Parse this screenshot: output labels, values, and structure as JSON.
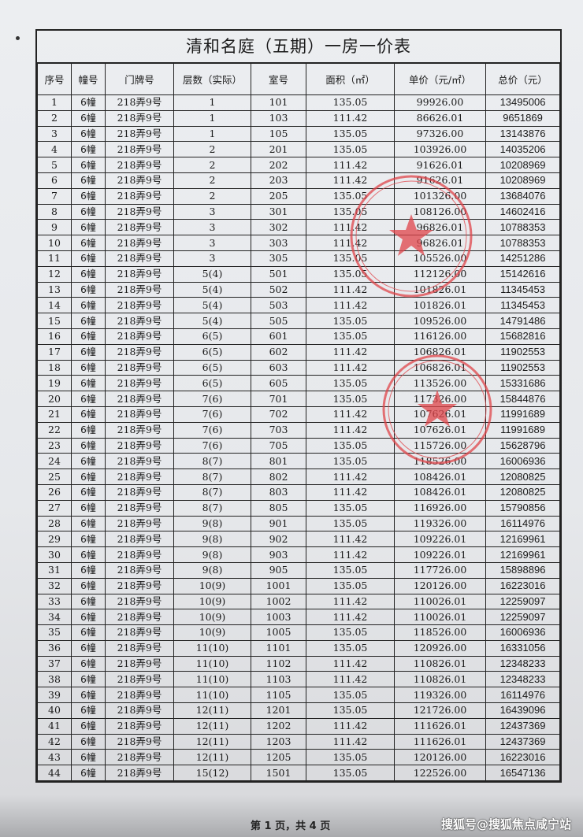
{
  "title": "清和名庭（五期）一房一价表",
  "columns": [
    "序号",
    "幢号",
    "门牌号",
    "层数（实际）",
    "室号",
    "面积（㎡）",
    "单价（元/㎡）",
    "总价（元）"
  ],
  "rows": [
    [
      "1",
      "6幢",
      "218弄9号",
      "1",
      "101",
      "135.05",
      "99926.00",
      "13495006"
    ],
    [
      "2",
      "6幢",
      "218弄9号",
      "1",
      "103",
      "111.42",
      "86626.01",
      "9651869"
    ],
    [
      "3",
      "6幢",
      "218弄9号",
      "1",
      "105",
      "135.05",
      "97326.00",
      "13143876"
    ],
    [
      "4",
      "6幢",
      "218弄9号",
      "2",
      "201",
      "135.05",
      "103926.00",
      "14035206"
    ],
    [
      "5",
      "6幢",
      "218弄9号",
      "2",
      "202",
      "111.42",
      "91626.01",
      "10208969"
    ],
    [
      "6",
      "6幢",
      "218弄9号",
      "2",
      "203",
      "111.42",
      "91626.01",
      "10208969"
    ],
    [
      "7",
      "6幢",
      "218弄9号",
      "2",
      "205",
      "135.05",
      "101326.00",
      "13684076"
    ],
    [
      "8",
      "6幢",
      "218弄9号",
      "3",
      "301",
      "135.05",
      "108126.00",
      "14602416"
    ],
    [
      "9",
      "6幢",
      "218弄9号",
      "3",
      "302",
      "111.42",
      "96826.01",
      "10788353"
    ],
    [
      "10",
      "6幢",
      "218弄9号",
      "3",
      "303",
      "111.42",
      "96826.01",
      "10788353"
    ],
    [
      "11",
      "6幢",
      "218弄9号",
      "3",
      "305",
      "135.05",
      "105526.00",
      "14251286"
    ],
    [
      "12",
      "6幢",
      "218弄9号",
      "5(4)",
      "501",
      "135.05",
      "112126.00",
      "15142616"
    ],
    [
      "13",
      "6幢",
      "218弄9号",
      "5(4)",
      "502",
      "111.42",
      "101826.01",
      "11345453"
    ],
    [
      "14",
      "6幢",
      "218弄9号",
      "5(4)",
      "503",
      "111.42",
      "101826.01",
      "11345453"
    ],
    [
      "15",
      "6幢",
      "218弄9号",
      "5(4)",
      "505",
      "135.05",
      "109526.00",
      "14791486"
    ],
    [
      "16",
      "6幢",
      "218弄9号",
      "6(5)",
      "601",
      "135.05",
      "116126.00",
      "15682816"
    ],
    [
      "17",
      "6幢",
      "218弄9号",
      "6(5)",
      "602",
      "111.42",
      "106826.01",
      "11902553"
    ],
    [
      "18",
      "6幢",
      "218弄9号",
      "6(5)",
      "603",
      "111.42",
      "106826.01",
      "11902553"
    ],
    [
      "19",
      "6幢",
      "218弄9号",
      "6(5)",
      "605",
      "135.05",
      "113526.00",
      "15331686"
    ],
    [
      "20",
      "6幢",
      "218弄9号",
      "7(6)",
      "701",
      "135.05",
      "117326.00",
      "15844876"
    ],
    [
      "21",
      "6幢",
      "218弄9号",
      "7(6)",
      "702",
      "111.42",
      "107626.01",
      "11991689"
    ],
    [
      "22",
      "6幢",
      "218弄9号",
      "7(6)",
      "703",
      "111.42",
      "107626.01",
      "11991689"
    ],
    [
      "23",
      "6幢",
      "218弄9号",
      "7(6)",
      "705",
      "135.05",
      "115726.00",
      "15628796"
    ],
    [
      "24",
      "6幢",
      "218弄9号",
      "8(7)",
      "801",
      "135.05",
      "118526.00",
      "16006936"
    ],
    [
      "25",
      "6幢",
      "218弄9号",
      "8(7)",
      "802",
      "111.42",
      "108426.01",
      "12080825"
    ],
    [
      "26",
      "6幢",
      "218弄9号",
      "8(7)",
      "803",
      "111.42",
      "108426.01",
      "12080825"
    ],
    [
      "27",
      "6幢",
      "218弄9号",
      "8(7)",
      "805",
      "135.05",
      "116926.00",
      "15790856"
    ],
    [
      "28",
      "6幢",
      "218弄9号",
      "9(8)",
      "901",
      "135.05",
      "119326.00",
      "16114976"
    ],
    [
      "29",
      "6幢",
      "218弄9号",
      "9(8)",
      "902",
      "111.42",
      "109226.01",
      "12169961"
    ],
    [
      "30",
      "6幢",
      "218弄9号",
      "9(8)",
      "903",
      "111.42",
      "109226.01",
      "12169961"
    ],
    [
      "31",
      "6幢",
      "218弄9号",
      "9(8)",
      "905",
      "135.05",
      "117726.00",
      "15898896"
    ],
    [
      "32",
      "6幢",
      "218弄9号",
      "10(9)",
      "1001",
      "135.05",
      "120126.00",
      "16223016"
    ],
    [
      "33",
      "6幢",
      "218弄9号",
      "10(9)",
      "1002",
      "111.42",
      "110026.01",
      "12259097"
    ],
    [
      "34",
      "6幢",
      "218弄9号",
      "10(9)",
      "1003",
      "111.42",
      "110026.01",
      "12259097"
    ],
    [
      "35",
      "6幢",
      "218弄9号",
      "10(9)",
      "1005",
      "135.05",
      "118526.00",
      "16006936"
    ],
    [
      "36",
      "6幢",
      "218弄9号",
      "11(10)",
      "1101",
      "135.05",
      "120926.00",
      "16331056"
    ],
    [
      "37",
      "6幢",
      "218弄9号",
      "11(10)",
      "1102",
      "111.42",
      "110826.01",
      "12348233"
    ],
    [
      "38",
      "6幢",
      "218弄9号",
      "11(10)",
      "1103",
      "111.42",
      "110826.01",
      "12348233"
    ],
    [
      "39",
      "6幢",
      "218弄9号",
      "11(10)",
      "1105",
      "135.05",
      "119326.00",
      "16114976"
    ],
    [
      "40",
      "6幢",
      "218弄9号",
      "12(11)",
      "1201",
      "135.05",
      "121726.00",
      "16439096"
    ],
    [
      "41",
      "6幢",
      "218弄9号",
      "12(11)",
      "1202",
      "111.42",
      "111626.01",
      "12437369"
    ],
    [
      "42",
      "6幢",
      "218弄9号",
      "12(11)",
      "1203",
      "111.42",
      "111626.01",
      "12437369"
    ],
    [
      "43",
      "6幢",
      "218弄9号",
      "12(11)",
      "1205",
      "135.05",
      "120126.00",
      "16223016"
    ],
    [
      "44",
      "6幢",
      "218弄9号",
      "15(12)",
      "1501",
      "135.05",
      "122526.00",
      "16547136"
    ]
  ],
  "footer": {
    "page_info": "第 1 页，共 4 页",
    "watermark": "搜狐号@搜狐焦点咸宁站"
  },
  "colors": {
    "stamp": "#e0454a",
    "ink": "#1a1a1a"
  }
}
